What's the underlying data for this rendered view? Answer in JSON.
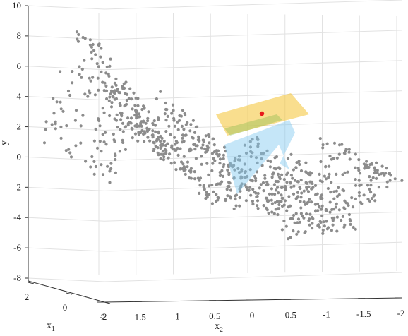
{
  "chart_data": {
    "type": "scatter",
    "projection": "3d",
    "axes": {
      "x1": {
        "label": "x",
        "subscript": "1",
        "ticks": [
          2,
          0,
          -2
        ],
        "range": [
          2,
          -2
        ]
      },
      "x2": {
        "label": "x",
        "subscript": "2",
        "ticks": [
          2,
          1.5,
          1,
          0.5,
          0,
          -0.5,
          -1,
          -1.5,
          -2
        ],
        "range": [
          2,
          -2
        ]
      },
      "y": {
        "label": "y",
        "ticks": [
          10,
          8,
          6,
          4,
          2,
          0,
          -2,
          -4,
          -6,
          -8
        ],
        "range": [
          -8,
          10
        ]
      }
    },
    "x2_tick_labels": [
      "2",
      "1.5",
      "1",
      "0.5",
      "0",
      "-0.5",
      "-1",
      "-1.5",
      "-2"
    ],
    "x1_tick_labels": [
      "2",
      "0",
      "-2"
    ],
    "y_tick_labels": [
      "10",
      "8",
      "6",
      "4",
      "2",
      "0",
      "-2",
      "-4",
      "-6",
      "-8"
    ],
    "surface": {
      "description": "sinusoidal ridge of gray points",
      "ridge_x2": [
        2,
        1.75,
        1.5,
        1.25,
        1,
        0.75,
        0.5,
        0.25,
        0,
        -0.25,
        -0.5,
        -0.75,
        -1,
        -1.25,
        -1.5,
        -1.75,
        -2
      ],
      "ridge_y": [
        0.2,
        3.5,
        6.5,
        4.0,
        1.0,
        0.5,
        2.5,
        1.0,
        -2.5,
        -3.5,
        -1.5,
        0.0,
        -3.5,
        -5.5,
        -3.0,
        -0.5,
        -1.0
      ]
    },
    "planes": [
      {
        "name": "",
        "color": "#f5c842"
      },
      {
        "name": "",
        "color": "#7fc8f0"
      }
    ],
    "highlight_point": {
      "x2": 0.0,
      "y": 2.9,
      "color": "#e8191b"
    },
    "grid": true,
    "colors": {
      "points": "#8c8c8c",
      "highlight": "#e8191b",
      "plane_top": "#f5c842",
      "plane_bottom": "#7fc8f0"
    }
  }
}
